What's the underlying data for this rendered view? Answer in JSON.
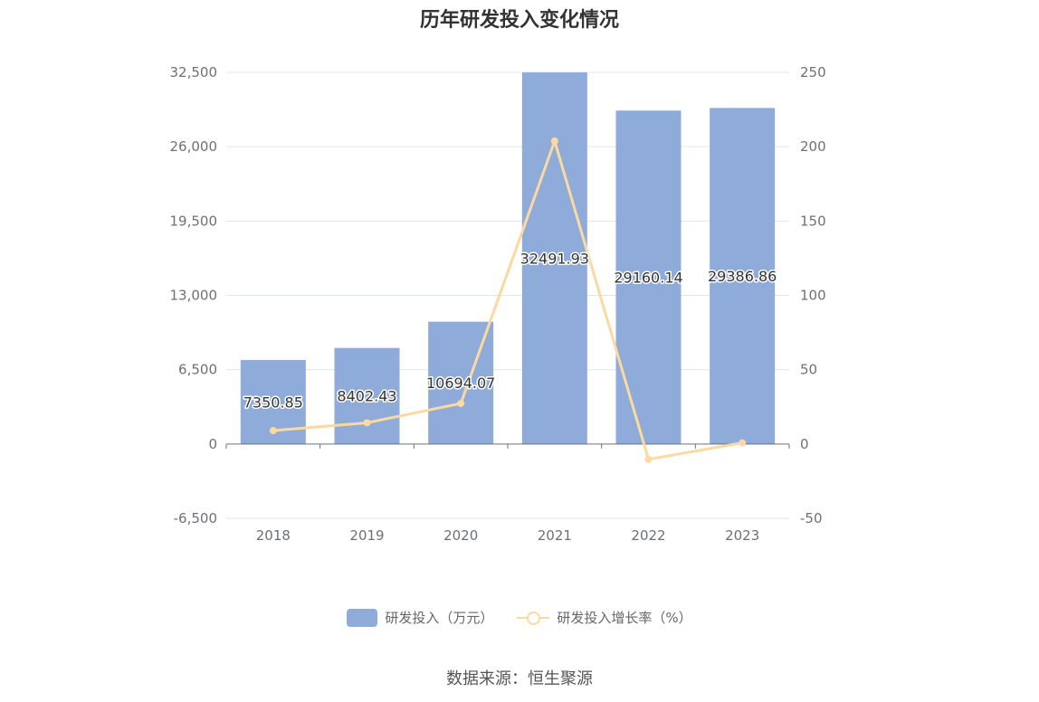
{
  "chart_data": {
    "type": "bar",
    "title": "历年研发投入变化情况",
    "categories": [
      "2018",
      "2019",
      "2020",
      "2021",
      "2022",
      "2023"
    ],
    "series": [
      {
        "name": "研发投入（万元）",
        "type": "bar",
        "axis": "left",
        "values": [
          7350.85,
          8402.43,
          10694.07,
          32491.93,
          29160.14,
          29386.86
        ],
        "labels": [
          "7350.85",
          "8402.43",
          "10694.07",
          "32491.93",
          "29160.14",
          "29386.86"
        ],
        "color": "#8eabda"
      },
      {
        "name": "研发投入增长率（%）",
        "type": "line",
        "axis": "right",
        "values": [
          9,
          14.3,
          27.3,
          203.8,
          -10.3,
          0.8
        ],
        "color": "#fbd9a1"
      }
    ],
    "y_left": {
      "min": -6500,
      "max": 32500,
      "ticks": [
        "-6,500",
        "0",
        "6,500",
        "13,000",
        "19,500",
        "26,000",
        "32,500"
      ],
      "tick_values": [
        -6500,
        0,
        6500,
        13000,
        19500,
        26000,
        32500
      ]
    },
    "y_right": {
      "min": -50,
      "max": 250,
      "ticks": [
        "-50",
        "0",
        "50",
        "100",
        "150",
        "200",
        "250"
      ],
      "tick_values": [
        -50,
        0,
        50,
        100,
        150,
        200,
        250
      ]
    },
    "grid": true,
    "legend_position": "bottom"
  },
  "legend": {
    "bar_label": "研发投入（万元）",
    "line_label": "研发投入增长率（%）"
  },
  "source": "数据来源：恒生聚源"
}
